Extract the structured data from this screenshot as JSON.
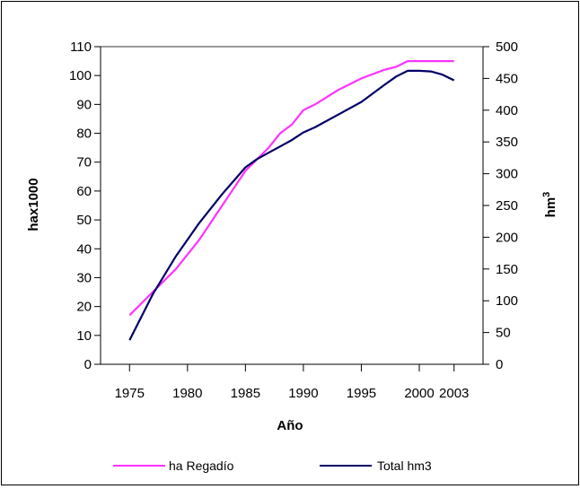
{
  "chart_data": {
    "type": "line",
    "xlabel": "Año",
    "ylabel_left": "hax1000",
    "ylabel_right": "hm",
    "ylabel_right_sup": "3",
    "x_tick_labels": [
      "1975",
      "1980",
      "1985",
      "1990",
      "1995",
      "2000",
      "2003"
    ],
    "x_tick_years": [
      1975,
      1980,
      1985,
      1990,
      1995,
      2000,
      2003
    ],
    "xlim": [
      1972.5,
      2005.5
    ],
    "ylim_left": [
      0,
      110
    ],
    "ylim_right": [
      0,
      500
    ],
    "left_ticks": [
      0,
      10,
      20,
      30,
      40,
      50,
      60,
      70,
      80,
      90,
      100,
      110
    ],
    "right_ticks": [
      0,
      50,
      100,
      150,
      200,
      250,
      300,
      350,
      400,
      450,
      500
    ],
    "grid": "top line only",
    "legend_position": "bottom",
    "series": [
      {
        "name": "ha Regadío",
        "axis": "left",
        "color": "#ff33ff",
        "x": [
          1975,
          1977,
          1979,
          1981,
          1983,
          1985,
          1986,
          1987,
          1988,
          1989,
          1990,
          1991,
          1993,
          1995,
          1997,
          1998,
          1999,
          2001,
          2003
        ],
        "y": [
          17,
          25,
          33,
          43,
          55,
          67,
          71,
          75,
          80,
          83,
          88,
          90,
          95,
          99,
          102,
          103,
          105,
          105,
          105
        ]
      },
      {
        "name": "Total hm3",
        "axis": "right",
        "color": "#000066",
        "x": [
          1975,
          1977,
          1979,
          1981,
          1983,
          1985,
          1986,
          1987,
          1988,
          1989,
          1990,
          1991,
          1993,
          1995,
          1997,
          1998,
          1999,
          2000,
          2001,
          2002,
          2003
        ],
        "y": [
          38,
          110,
          170,
          222,
          268,
          310,
          323,
          333,
          343,
          353,
          365,
          373,
          393,
          413,
          440,
          453,
          462,
          462,
          461,
          456,
          447
        ]
      }
    ]
  }
}
